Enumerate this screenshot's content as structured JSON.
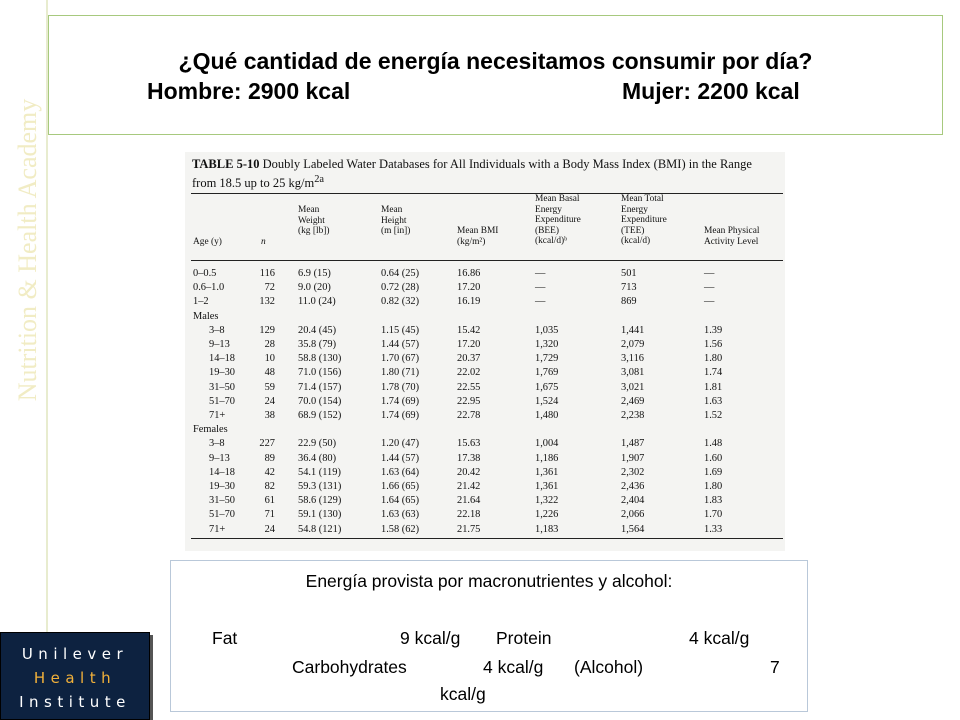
{
  "watermark": "Nutrition & Health Academy",
  "title": {
    "line1": "¿Qué cantidad de energía necesitamos consumir por día?",
    "men": "Hombre: 2900 kcal",
    "women": "Mujer: 2200 kcal"
  },
  "table": {
    "label": "TABLE 5-10",
    "caption_rest": "Doubly Labeled Water Databases for All Individuals with a Body Mass Index (BMI) in the Range from 18.5 up to 25 kg/m",
    "caption_sup": "2a",
    "headers": {
      "age": "Age (y)",
      "n": "n",
      "weight": [
        "Mean",
        "Weight",
        "(kg [lb])"
      ],
      "height": [
        "Mean",
        "Height",
        "(m [in])"
      ],
      "bmi": [
        "Mean BMI",
        "(kg/m²)"
      ],
      "bee": [
        "Mean Basal",
        "Energy",
        "Expenditure",
        "(BEE)",
        "(kcal/d)ᵇ"
      ],
      "tee": [
        "Mean Total",
        "Energy",
        "Expenditure",
        "(TEE)",
        "(kcal/d)"
      ],
      "pal": [
        "Mean Physical",
        "Activity Level"
      ]
    },
    "rows": [
      {
        "age": "0–0.5",
        "n": "116",
        "weight": "6.9 (15)",
        "height": "0.64 (25)",
        "bmi": "16.86",
        "bee": "—",
        "tee": "501",
        "pal": "—"
      },
      {
        "age": "0.6–1.0",
        "n": "72",
        "weight": "9.0 (20)",
        "height": "0.72 (28)",
        "bmi": "17.20",
        "bee": "—",
        "tee": "713",
        "pal": "—"
      },
      {
        "age": "1–2",
        "n": "132",
        "weight": "11.0 (24)",
        "height": "0.82 (32)",
        "bmi": "16.19",
        "bee": "—",
        "tee": "869",
        "pal": "—"
      },
      {
        "group": "Males"
      },
      {
        "age": "3–8",
        "n": "129",
        "weight": "20.4 (45)",
        "height": "1.15 (45)",
        "bmi": "15.42",
        "bee": "1,035",
        "tee": "1,441",
        "pal": "1.39"
      },
      {
        "age": "9–13",
        "n": "28",
        "weight": "35.8 (79)",
        "height": "1.44 (57)",
        "bmi": "17.20",
        "bee": "1,320",
        "tee": "2,079",
        "pal": "1.56"
      },
      {
        "age": "14–18",
        "n": "10",
        "weight": "58.8 (130)",
        "height": "1.70 (67)",
        "bmi": "20.37",
        "bee": "1,729",
        "tee": "3,116",
        "pal": "1.80"
      },
      {
        "age": "19–30",
        "n": "48",
        "weight": "71.0 (156)",
        "height": "1.80 (71)",
        "bmi": "22.02",
        "bee": "1,769",
        "tee": "3,081",
        "pal": "1.74"
      },
      {
        "age": "31–50",
        "n": "59",
        "weight": "71.4 (157)",
        "height": "1.78 (70)",
        "bmi": "22.55",
        "bee": "1,675",
        "tee": "3,021",
        "pal": "1.81"
      },
      {
        "age": "51–70",
        "n": "24",
        "weight": "70.0 (154)",
        "height": "1.74 (69)",
        "bmi": "22.95",
        "bee": "1,524",
        "tee": "2,469",
        "pal": "1.63"
      },
      {
        "age": "71+",
        "n": "38",
        "weight": "68.9 (152)",
        "height": "1.74 (69)",
        "bmi": "22.78",
        "bee": "1,480",
        "tee": "2,238",
        "pal": "1.52"
      },
      {
        "group": "Females"
      },
      {
        "age": "3–8",
        "n": "227",
        "weight": "22.9 (50)",
        "height": "1.20 (47)",
        "bmi": "15.63",
        "bee": "1,004",
        "tee": "1,487",
        "pal": "1.48"
      },
      {
        "age": "9–13",
        "n": "89",
        "weight": "36.4 (80)",
        "height": "1.44 (57)",
        "bmi": "17.38",
        "bee": "1,186",
        "tee": "1,907",
        "pal": "1.60"
      },
      {
        "age": "14–18",
        "n": "42",
        "weight": "54.1 (119)",
        "height": "1.63 (64)",
        "bmi": "20.42",
        "bee": "1,361",
        "tee": "2,302",
        "pal": "1.69"
      },
      {
        "age": "19–30",
        "n": "82",
        "weight": "59.3 (131)",
        "height": "1.66 (65)",
        "bmi": "21.42",
        "bee": "1,361",
        "tee": "2,436",
        "pal": "1.80"
      },
      {
        "age": "31–50",
        "n": "61",
        "weight": "58.6 (129)",
        "height": "1.64 (65)",
        "bmi": "21.64",
        "bee": "1,322",
        "tee": "2,404",
        "pal": "1.83"
      },
      {
        "age": "51–70",
        "n": "71",
        "weight": "59.1 (130)",
        "height": "1.63 (63)",
        "bmi": "22.18",
        "bee": "1,226",
        "tee": "2,066",
        "pal": "1.70"
      },
      {
        "age": "71+",
        "n": "24",
        "weight": "54.8 (121)",
        "height": "1.58 (62)",
        "bmi": "21.75",
        "bee": "1,183",
        "tee": "1,564",
        "pal": "1.33"
      }
    ]
  },
  "energy": {
    "heading": "Energía provista por macronutrientes y alcohol:",
    "fat_label": "Fat",
    "fat_value": "9 kcal/g",
    "protein_label": "Protein",
    "protein_value": "4 kcal/g",
    "carb_label": "Carbohydrates",
    "carb_value": "4 kcal/g",
    "alcohol_label": "(Alcohol)",
    "alcohol_value_num": "7",
    "alcohol_value_unit": "kcal/g"
  },
  "logo": {
    "line1": "Unilever",
    "line2": "Health",
    "line3": "Institute"
  }
}
